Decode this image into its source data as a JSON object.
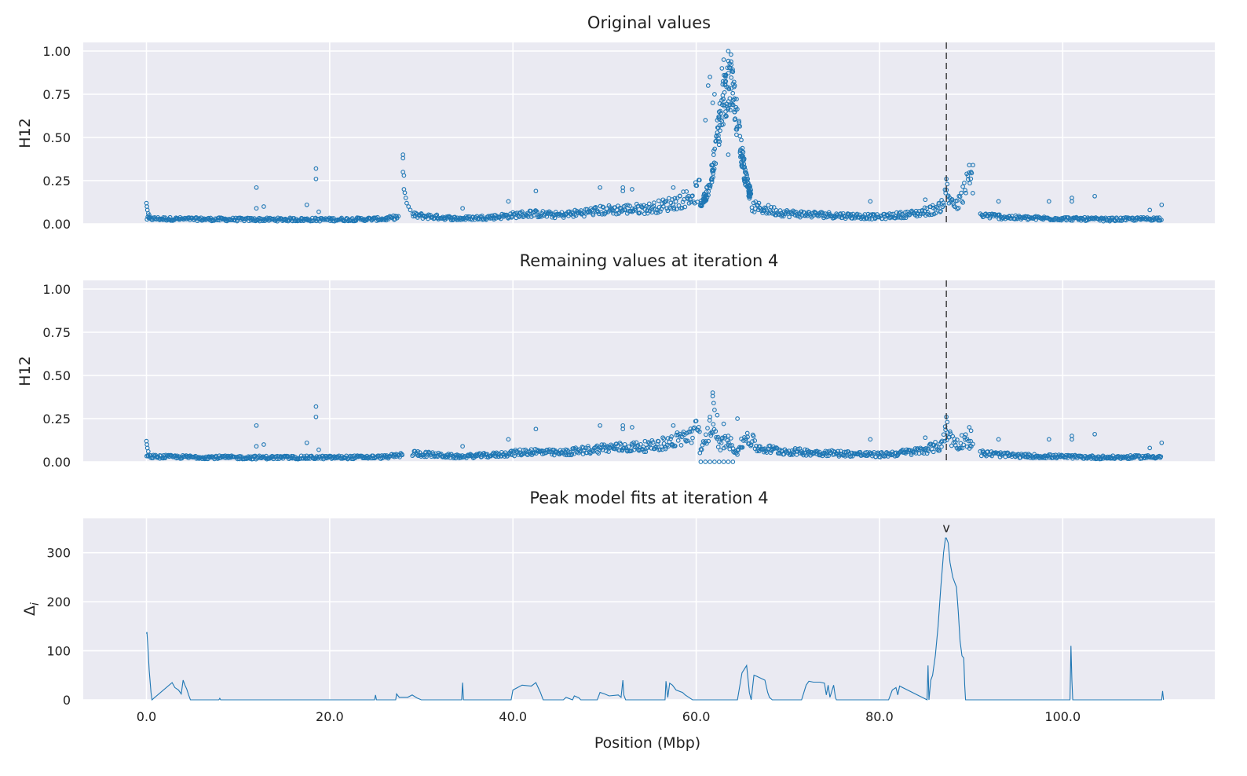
{
  "chart_data": [
    {
      "type": "scatter",
      "title": "Original values",
      "xlabel": "",
      "ylabel": "H12",
      "xlim": [
        -6.9,
        116.6
      ],
      "ylim": [
        0,
        1.05
      ],
      "xticks": [
        0,
        20,
        40,
        60,
        80,
        100
      ],
      "yticks": [
        0,
        0.25,
        0.5,
        0.75,
        1.0
      ],
      "ytick_labels": [
        "0.00",
        "0.25",
        "0.50",
        "0.75",
        "1.00"
      ],
      "xtick_labels_visible": false,
      "vline_x": 87.3,
      "grid": true,
      "marker": "open-circle",
      "baseline_segments": [
        {
          "x": [
            0.0,
            10.0,
            20.0,
            26.0,
            27.5
          ],
          "y": [
            0.03,
            0.025,
            0.025,
            0.028,
            0.04
          ]
        },
        {
          "x": [
            29.0,
            34.0,
            38.0,
            42.0,
            45.0,
            50.0,
            55.0,
            57.5,
            59.5,
            60.4
          ],
          "y": [
            0.05,
            0.03,
            0.04,
            0.06,
            0.05,
            0.08,
            0.09,
            0.12,
            0.16,
            0.2
          ]
        },
        {
          "x": [
            66.0,
            70.0,
            75.0,
            80.0,
            84.0,
            86.5,
            87.3,
            88.5,
            89.5,
            90.2
          ],
          "y": [
            0.1,
            0.06,
            0.05,
            0.04,
            0.06,
            0.09,
            0.17,
            0.1,
            0.22,
            0.26
          ]
        },
        {
          "x": [
            91.0,
            95.0,
            100.0,
            105.0,
            110.8
          ],
          "y": [
            0.05,
            0.035,
            0.03,
            0.025,
            0.03
          ]
        }
      ],
      "extra_points": [
        [
          0.0,
          0.12
        ],
        [
          0.05,
          0.1
        ],
        [
          0.1,
          0.08
        ],
        [
          0.2,
          0.06
        ],
        [
          0.3,
          0.05
        ],
        [
          12.0,
          0.21
        ],
        [
          12.0,
          0.09
        ],
        [
          12.8,
          0.1
        ],
        [
          17.5,
          0.11
        ],
        [
          18.5,
          0.32
        ],
        [
          18.5,
          0.26
        ],
        [
          18.8,
          0.07
        ],
        [
          28.0,
          0.4
        ],
        [
          28.0,
          0.38
        ],
        [
          28.0,
          0.3
        ],
        [
          28.1,
          0.28
        ],
        [
          28.1,
          0.2
        ],
        [
          28.2,
          0.18
        ],
        [
          28.3,
          0.15
        ],
        [
          28.4,
          0.12
        ],
        [
          28.6,
          0.1
        ],
        [
          28.8,
          0.08
        ],
        [
          34.5,
          0.09
        ],
        [
          39.5,
          0.13
        ],
        [
          42.5,
          0.19
        ],
        [
          49.5,
          0.21
        ],
        [
          52.0,
          0.21
        ],
        [
          52.0,
          0.19
        ],
        [
          53.0,
          0.2
        ],
        [
          57.5,
          0.21
        ],
        [
          61.0,
          0.6
        ],
        [
          61.3,
          0.8
        ],
        [
          61.5,
          0.85
        ],
        [
          61.8,
          0.7
        ],
        [
          62.0,
          0.75
        ],
        [
          62.3,
          0.6
        ],
        [
          62.5,
          0.62
        ],
        [
          62.8,
          0.9
        ],
        [
          63.0,
          0.95
        ],
        [
          63.2,
          0.85
        ],
        [
          63.5,
          1.0
        ],
        [
          63.8,
          0.98
        ],
        [
          64.0,
          0.88
        ],
        [
          64.2,
          0.8
        ],
        [
          63.5,
          0.4
        ],
        [
          65.0,
          0.35
        ],
        [
          65.0,
          0.33
        ],
        [
          79.0,
          0.13
        ],
        [
          85.0,
          0.14
        ],
        [
          87.3,
          0.26
        ],
        [
          87.4,
          0.23
        ],
        [
          89.8,
          0.34
        ],
        [
          90.2,
          0.34
        ],
        [
          90.0,
          0.3
        ],
        [
          93.0,
          0.13
        ],
        [
          98.5,
          0.13
        ],
        [
          101.0,
          0.15
        ],
        [
          101.0,
          0.13
        ],
        [
          103.5,
          0.16
        ],
        [
          109.5,
          0.08
        ],
        [
          110.8,
          0.11
        ]
      ],
      "peak": {
        "x0": 60.4,
        "x1": 66.0,
        "center": 63.5,
        "top": 0.97,
        "base": 0.12
      }
    },
    {
      "type": "scatter",
      "title": "Remaining values at iteration 4",
      "xlabel": "",
      "ylabel": "H12",
      "xlim": [
        -6.9,
        116.6
      ],
      "ylim": [
        0,
        1.05
      ],
      "xticks": [
        0,
        20,
        40,
        60,
        80,
        100
      ],
      "yticks": [
        0,
        0.25,
        0.5,
        0.75,
        1.0
      ],
      "ytick_labels": [
        "0.00",
        "0.25",
        "0.50",
        "0.75",
        "1.00"
      ],
      "xtick_labels_visible": false,
      "vline_x": 87.3,
      "grid": true,
      "marker": "open-circle",
      "baseline_segments": [
        {
          "x": [
            0.0,
            10.0,
            20.0,
            26.0,
            28.0
          ],
          "y": [
            0.03,
            0.025,
            0.025,
            0.028,
            0.04
          ]
        },
        {
          "x": [
            29.0,
            34.0,
            38.0,
            42.0,
            45.0,
            50.0,
            55.0,
            57.5,
            59.5,
            60.4
          ],
          "y": [
            0.05,
            0.03,
            0.04,
            0.06,
            0.05,
            0.08,
            0.09,
            0.12,
            0.16,
            0.2
          ]
        },
        {
          "x": [
            60.4,
            61.5,
            62.5,
            63.5,
            64.5,
            65.5,
            66.5
          ],
          "y": [
            0.05,
            0.2,
            0.1,
            0.12,
            0.06,
            0.15,
            0.1
          ]
        },
        {
          "x": [
            66.5,
            70.0,
            75.0,
            80.0,
            84.0,
            86.5,
            87.3,
            88.5,
            89.5,
            90.2
          ],
          "y": [
            0.08,
            0.06,
            0.05,
            0.04,
            0.06,
            0.09,
            0.17,
            0.1,
            0.14,
            0.08
          ]
        },
        {
          "x": [
            91.0,
            95.0,
            100.0,
            105.0,
            110.8
          ],
          "y": [
            0.05,
            0.035,
            0.03,
            0.025,
            0.03
          ]
        }
      ],
      "extra_points": [
        [
          0.0,
          0.12
        ],
        [
          0.05,
          0.1
        ],
        [
          0.1,
          0.08
        ],
        [
          0.2,
          0.06
        ],
        [
          12.0,
          0.21
        ],
        [
          12.0,
          0.09
        ],
        [
          12.8,
          0.1
        ],
        [
          17.5,
          0.11
        ],
        [
          18.5,
          0.32
        ],
        [
          18.5,
          0.26
        ],
        [
          18.8,
          0.07
        ],
        [
          34.5,
          0.09
        ],
        [
          39.5,
          0.13
        ],
        [
          42.5,
          0.19
        ],
        [
          49.5,
          0.21
        ],
        [
          52.0,
          0.21
        ],
        [
          52.0,
          0.19
        ],
        [
          53.0,
          0.2
        ],
        [
          57.5,
          0.21
        ],
        [
          60.5,
          0.0
        ],
        [
          61.0,
          0.0
        ],
        [
          61.5,
          0.0
        ],
        [
          62.0,
          0.0
        ],
        [
          62.5,
          0.0
        ],
        [
          63.0,
          0.0
        ],
        [
          63.5,
          0.0
        ],
        [
          64.0,
          0.0
        ],
        [
          61.8,
          0.4
        ],
        [
          61.8,
          0.38
        ],
        [
          61.9,
          0.34
        ],
        [
          62.0,
          0.3
        ],
        [
          62.3,
          0.27
        ],
        [
          61.5,
          0.26
        ],
        [
          63.0,
          0.22
        ],
        [
          63.5,
          0.15
        ],
        [
          64.5,
          0.25
        ],
        [
          79.0,
          0.13
        ],
        [
          85.0,
          0.14
        ],
        [
          87.3,
          0.26
        ],
        [
          87.4,
          0.23
        ],
        [
          89.8,
          0.2
        ],
        [
          90.0,
          0.18
        ],
        [
          93.0,
          0.13
        ],
        [
          98.5,
          0.13
        ],
        [
          101.0,
          0.15
        ],
        [
          101.0,
          0.13
        ],
        [
          103.5,
          0.16
        ],
        [
          109.5,
          0.08
        ],
        [
          110.8,
          0.11
        ]
      ],
      "peak": null
    },
    {
      "type": "line",
      "title": "Peak model fits at iteration 4",
      "xlabel": "Position (Mbp)",
      "ylabel": "Δi",
      "ylabel_main": "Δ",
      "ylabel_sub": "i",
      "xlim": [
        -6.9,
        116.6
      ],
      "ylim": [
        0,
        370
      ],
      "xticks": [
        0,
        20,
        40,
        60,
        80,
        100
      ],
      "xtick_labels": [
        "0.0",
        "20.0",
        "40.0",
        "60.0",
        "80.0",
        "100.0"
      ],
      "yticks": [
        0,
        100,
        200,
        300
      ],
      "ytick_labels": [
        "0",
        "100",
        "200",
        "300"
      ],
      "grid": true,
      "marker_label": "v",
      "marker_x": 87.3,
      "marker_y": 345,
      "series": [
        {
          "x": [
            0.0,
            0.05,
            0.15,
            0.3,
            0.5,
            0.6,
            2.8,
            3.1,
            3.5,
            3.8,
            4.0,
            4.2,
            4.4,
            4.6,
            4.8,
            7.9,
            8.0,
            8.1,
            24.9,
            25.0,
            25.1,
            27.2,
            27.3,
            27.6,
            28.5,
            29.0,
            29.5,
            30.0,
            34.4,
            34.5,
            34.6,
            39.8,
            40.0,
            40.5,
            41.0,
            42.0,
            42.5,
            43.0,
            43.3,
            45.5,
            45.8,
            46.5,
            46.7,
            47.2,
            47.4,
            49.2,
            49.5,
            50.0,
            50.5,
            51.5,
            51.8,
            52.0,
            52.1,
            52.3,
            56.6,
            56.7,
            56.9,
            57.1,
            57.4,
            57.8,
            58.5,
            58.8,
            59.2,
            59.6,
            60.4,
            64.5,
            65.0,
            65.5,
            65.8,
            66.0,
            66.3,
            66.6,
            67.5,
            67.8,
            68.0,
            68.3,
            71.5,
            72.0,
            72.3,
            72.8,
            73.5,
            74.0,
            74.2,
            74.4,
            74.6,
            75.0,
            75.2,
            75.3,
            81.0,
            81.4,
            81.8,
            82.0,
            82.2,
            85.2,
            85.3,
            85.4,
            85.6,
            85.8,
            86.1,
            86.4,
            86.7,
            87.0,
            87.2,
            87.3,
            87.5,
            87.7,
            88.0,
            88.2,
            88.4,
            88.6,
            88.8,
            89.0,
            89.2,
            89.3,
            89.4,
            90.5,
            90.6,
            100.8,
            100.9,
            101.0,
            101.1,
            101.3,
            110.8,
            110.9,
            111.0
          ],
          "y": [
            135,
            138,
            110,
            60,
            15,
            0,
            35,
            25,
            20,
            12,
            40,
            30,
            22,
            10,
            0,
            0,
            3,
            0,
            0,
            10,
            0,
            0,
            12,
            5,
            5,
            10,
            4,
            0,
            0,
            35,
            0,
            0,
            20,
            25,
            30,
            28,
            35,
            15,
            0,
            0,
            5,
            0,
            8,
            4,
            0,
            0,
            15,
            12,
            8,
            10,
            5,
            40,
            10,
            0,
            0,
            38,
            5,
            34,
            30,
            20,
            15,
            10,
            5,
            0,
            0,
            0,
            55,
            70,
            15,
            0,
            50,
            48,
            40,
            15,
            5,
            0,
            0,
            30,
            38,
            36,
            36,
            34,
            10,
            30,
            5,
            30,
            5,
            0,
            0,
            20,
            25,
            10,
            28,
            0,
            70,
            0,
            40,
            50,
            90,
            150,
            230,
            300,
            330,
            330,
            320,
            280,
            250,
            240,
            230,
            180,
            120,
            90,
            85,
            30,
            0,
            0,
            0,
            0,
            110,
            40,
            0,
            0,
            0,
            18,
            0
          ]
        }
      ]
    }
  ],
  "colors": {
    "plot_background": "#eaeaf2",
    "grid": "#ffffff",
    "series": "#1f77b4",
    "text": "#222222",
    "vline": "#333333"
  }
}
